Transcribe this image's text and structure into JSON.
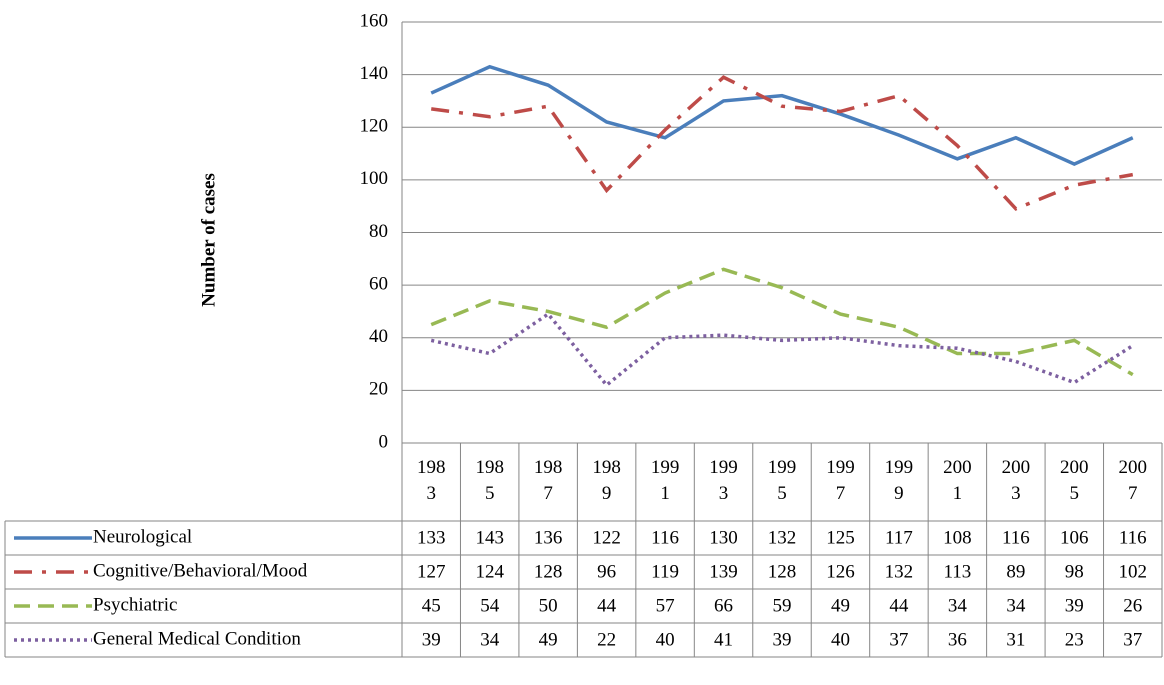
{
  "chart_data": {
    "type": "line",
    "y_label": "Number of cases",
    "categories": [
      "1983",
      "1985",
      "1987",
      "1989",
      "1991",
      "1993",
      "1995",
      "1997",
      "1999",
      "2001",
      "2003",
      "2005",
      "2007"
    ],
    "series": [
      {
        "name": "Neurological",
        "color": "#4a7ebb",
        "dash": "solid",
        "values": [
          133,
          143,
          136,
          122,
          116,
          130,
          132,
          125,
          117,
          108,
          116,
          106,
          116
        ]
      },
      {
        "name": "Cognitive/Behavioral/Mood",
        "color": "#be4b48",
        "dash": "dashdot",
        "values": [
          127,
          124,
          128,
          96,
          119,
          139,
          128,
          126,
          132,
          113,
          89,
          98,
          102
        ]
      },
      {
        "name": "Psychiatric",
        "color": "#98b954",
        "dash": "dash",
        "values": [
          45,
          54,
          50,
          44,
          57,
          66,
          59,
          49,
          44,
          34,
          34,
          39,
          26
        ]
      },
      {
        "name": "General Medical Condition",
        "color": "#7d60a0",
        "dash": "dot",
        "values": [
          39,
          34,
          49,
          22,
          40,
          41,
          39,
          40,
          37,
          36,
          31,
          23,
          37
        ]
      }
    ],
    "ylim": [
      0,
      160
    ],
    "yticks": [
      0,
      20,
      40,
      60,
      80,
      100,
      120,
      140,
      160
    ],
    "grid": true
  }
}
